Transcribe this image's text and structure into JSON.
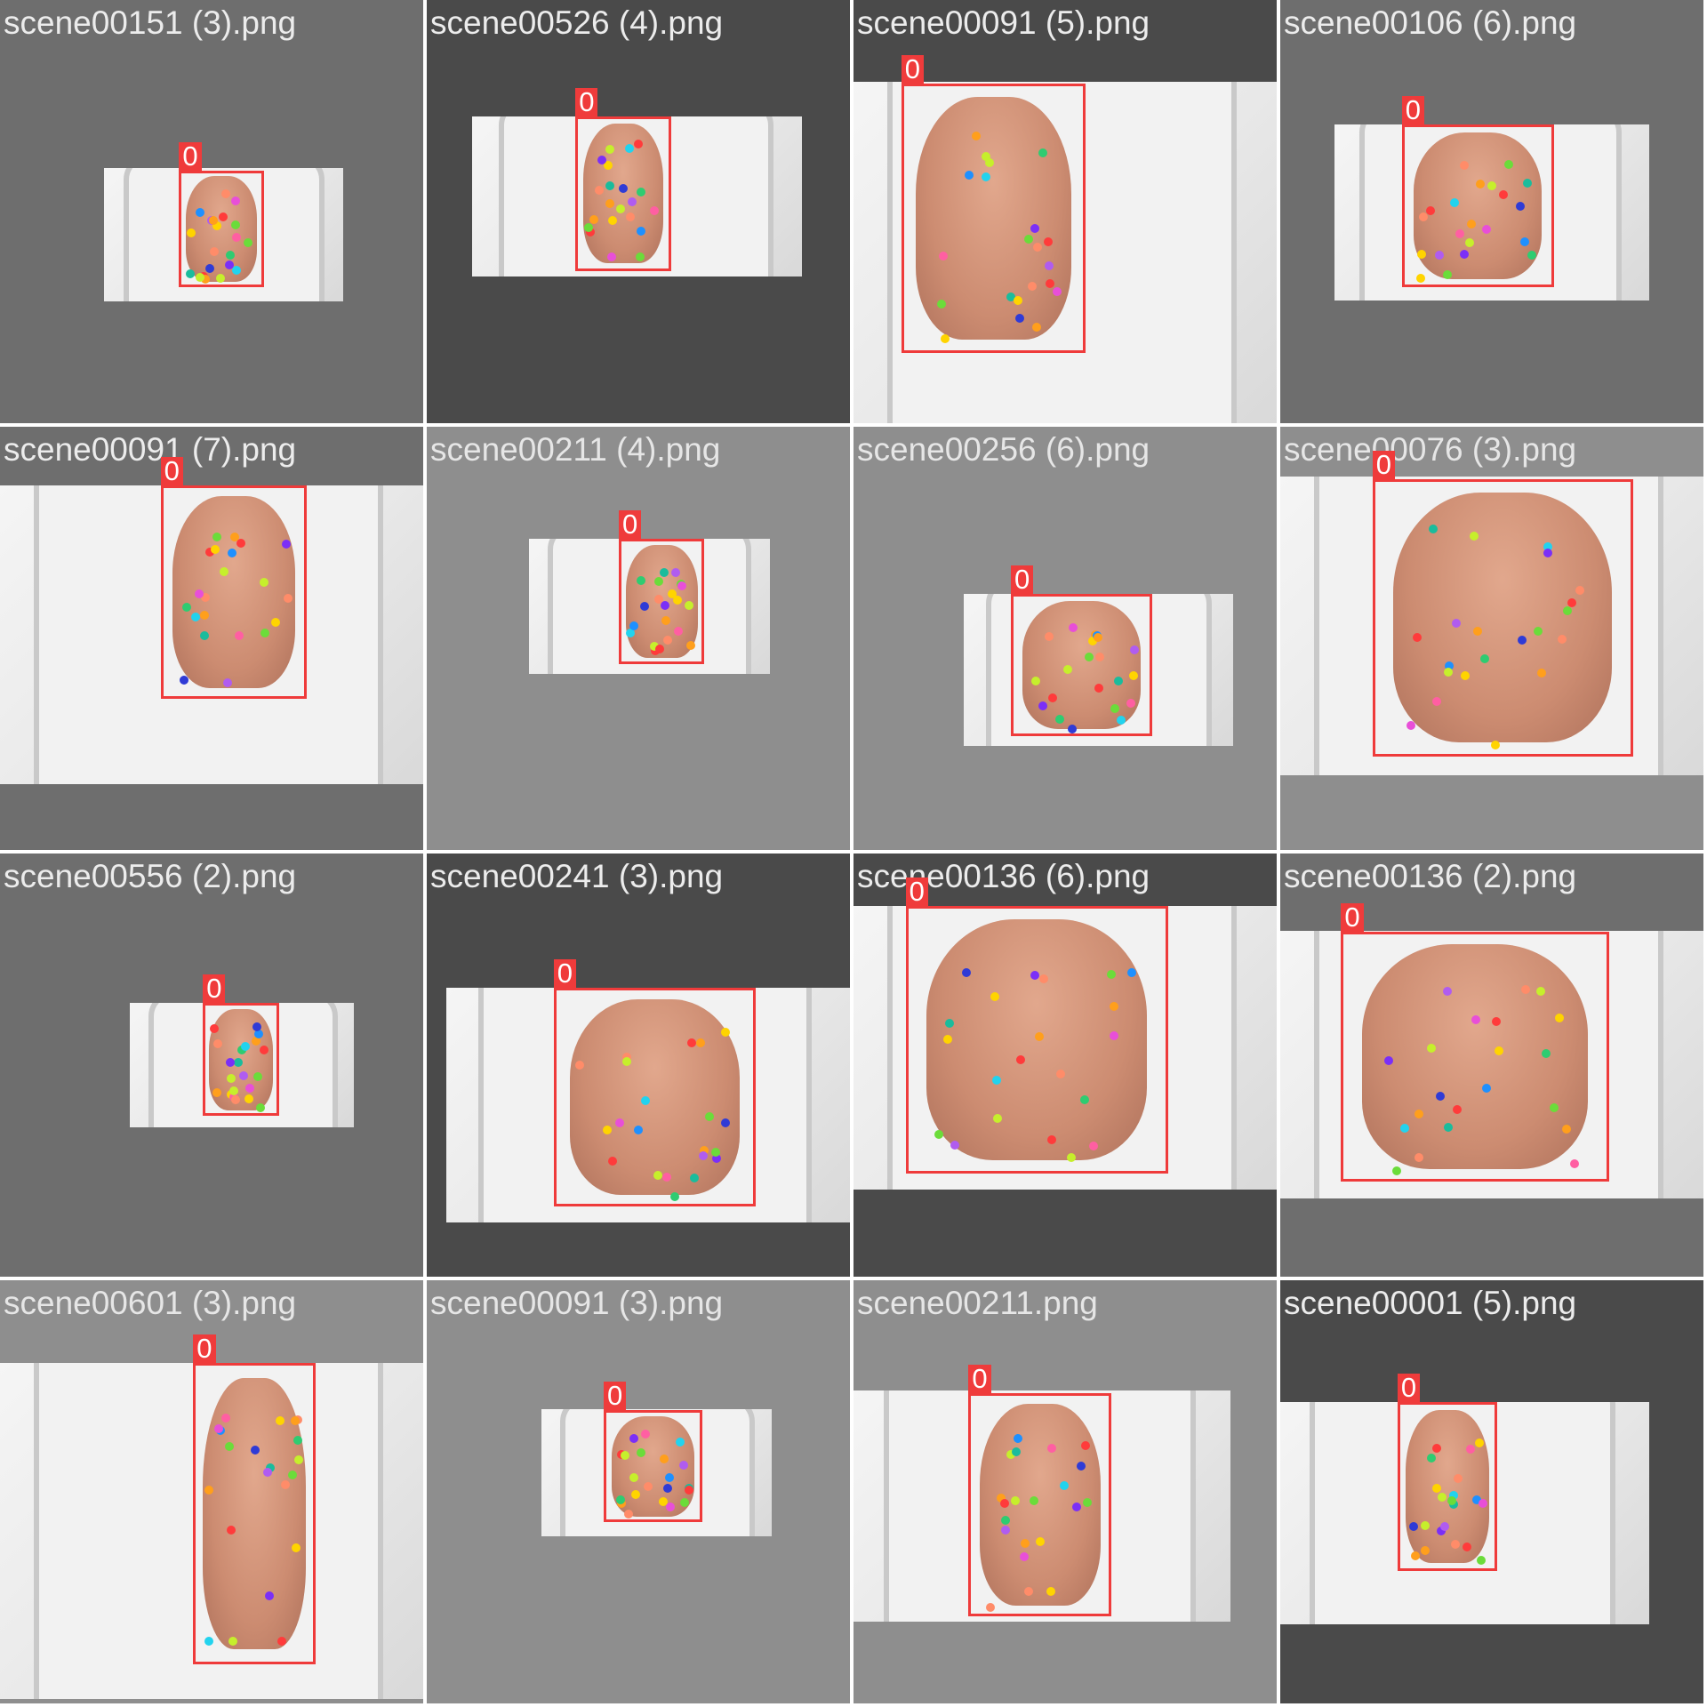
{
  "mosaic": {
    "tiles": [
      {
        "title": "scene00151 (3).png",
        "label": "0",
        "bg": "#6e6e6e",
        "title_color": "#ececec"
      },
      {
        "title": "scene00526 (4).png",
        "label": "0",
        "bg": "#4a4a4a",
        "title_color": "#ececec"
      },
      {
        "title": "scene00091 (5).png",
        "label": "0",
        "bg": "#4a4a4a",
        "title_color": "#ececec"
      },
      {
        "title": "scene00106 (6).png",
        "label": "0",
        "bg": "#6e6e6e",
        "title_color": "#ececec"
      },
      {
        "title": "scene00091 (7).png",
        "label": "0",
        "bg": "#6e6e6e",
        "title_color": "#ececec"
      },
      {
        "title": "scene00211 (4).png",
        "label": "0",
        "bg": "#8e8e8e",
        "title_color": "#e6e6e6"
      },
      {
        "title": "scene00256 (6).png",
        "label": "0",
        "bg": "#8e8e8e",
        "title_color": "#e6e6e6"
      },
      {
        "title": "scene00076 (3).png",
        "label": "0",
        "bg": "#8e8e8e",
        "title_color": "#e6e6e6"
      },
      {
        "title": "scene00556 (2).png",
        "label": "0",
        "bg": "#6e6e6e",
        "title_color": "#ececec"
      },
      {
        "title": "scene00241 (3).png",
        "label": "0",
        "bg": "#4a4a4a",
        "title_color": "#ececec"
      },
      {
        "title": "scene00136 (6).png",
        "label": "0",
        "bg": "#4a4a4a",
        "title_color": "#ececec"
      },
      {
        "title": "scene00136 (2).png",
        "label": "0",
        "bg": "#6e6e6e",
        "title_color": "#ececec"
      },
      {
        "title": "scene00601 (3).png",
        "label": "0",
        "bg": "#8e8e8e",
        "title_color": "#e6e6e6"
      },
      {
        "title": "scene00091 (3).png",
        "label": "0",
        "bg": "#8e8e8e",
        "title_color": "#e6e6e6"
      },
      {
        "title": "scene00211.png",
        "label": "0",
        "bg": "#8e8e8e",
        "title_color": "#e6e6e6"
      },
      {
        "title": "scene00001 (5).png",
        "label": "0",
        "bg": "#4a4a4a",
        "title_color": "#ececec"
      }
    ],
    "colors": {
      "bbox": "#ef3b3b",
      "label_text": "#ffffff",
      "keypoints": [
        "#ff3b3b",
        "#ff8c69",
        "#ff9f1c",
        "#ffd400",
        "#c6ef2c",
        "#6bdc3a",
        "#2ecc71",
        "#1abc9c",
        "#22d3ee",
        "#1e90ff",
        "#2f3bd6",
        "#7b2ff7",
        "#b05cf0",
        "#e84fd8",
        "#ff5fa2"
      ]
    }
  }
}
